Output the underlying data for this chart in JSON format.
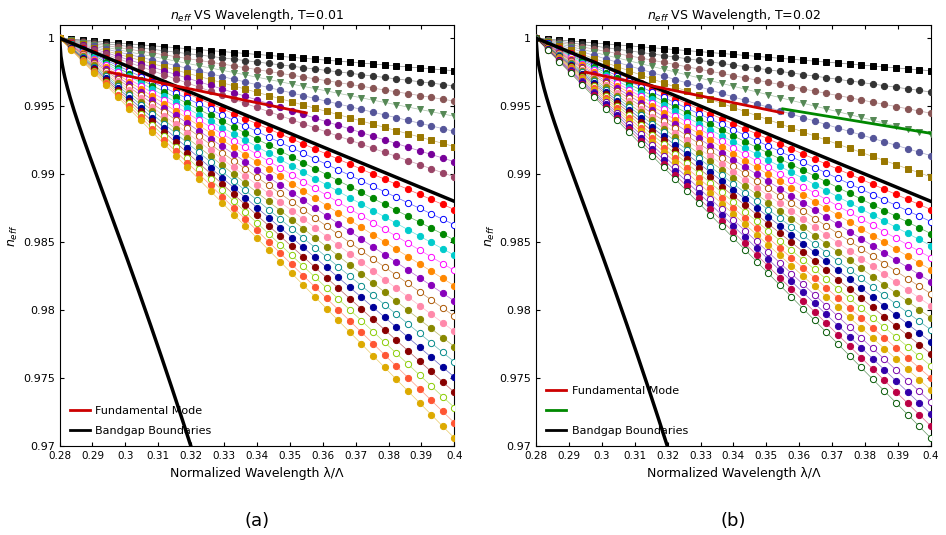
{
  "title_a": "$n_{eff}$ VS Wavelength, T=0.01",
  "title_b": "$n_{eff}$ VS Wavelength, T=0.02",
  "xlabel": "Normalized Wavelength λ/Λ",
  "ylabel": "$n_{eff}$",
  "xlim": [
    0.28,
    0.4
  ],
  "ylim": [
    0.97,
    1.001
  ],
  "xticks": [
    0.28,
    0.29,
    0.3,
    0.31,
    0.32,
    0.33,
    0.34,
    0.35,
    0.36,
    0.37,
    0.38,
    0.39,
    0.4
  ],
  "yticks": [
    0.97,
    0.975,
    0.98,
    0.985,
    0.99,
    0.995,
    1.0
  ],
  "label_a": "(a)",
  "label_b": "(b)",
  "legend_fundamental": "Fundamental Mode",
  "legend_bandgap": "Bandgap Boundaries"
}
